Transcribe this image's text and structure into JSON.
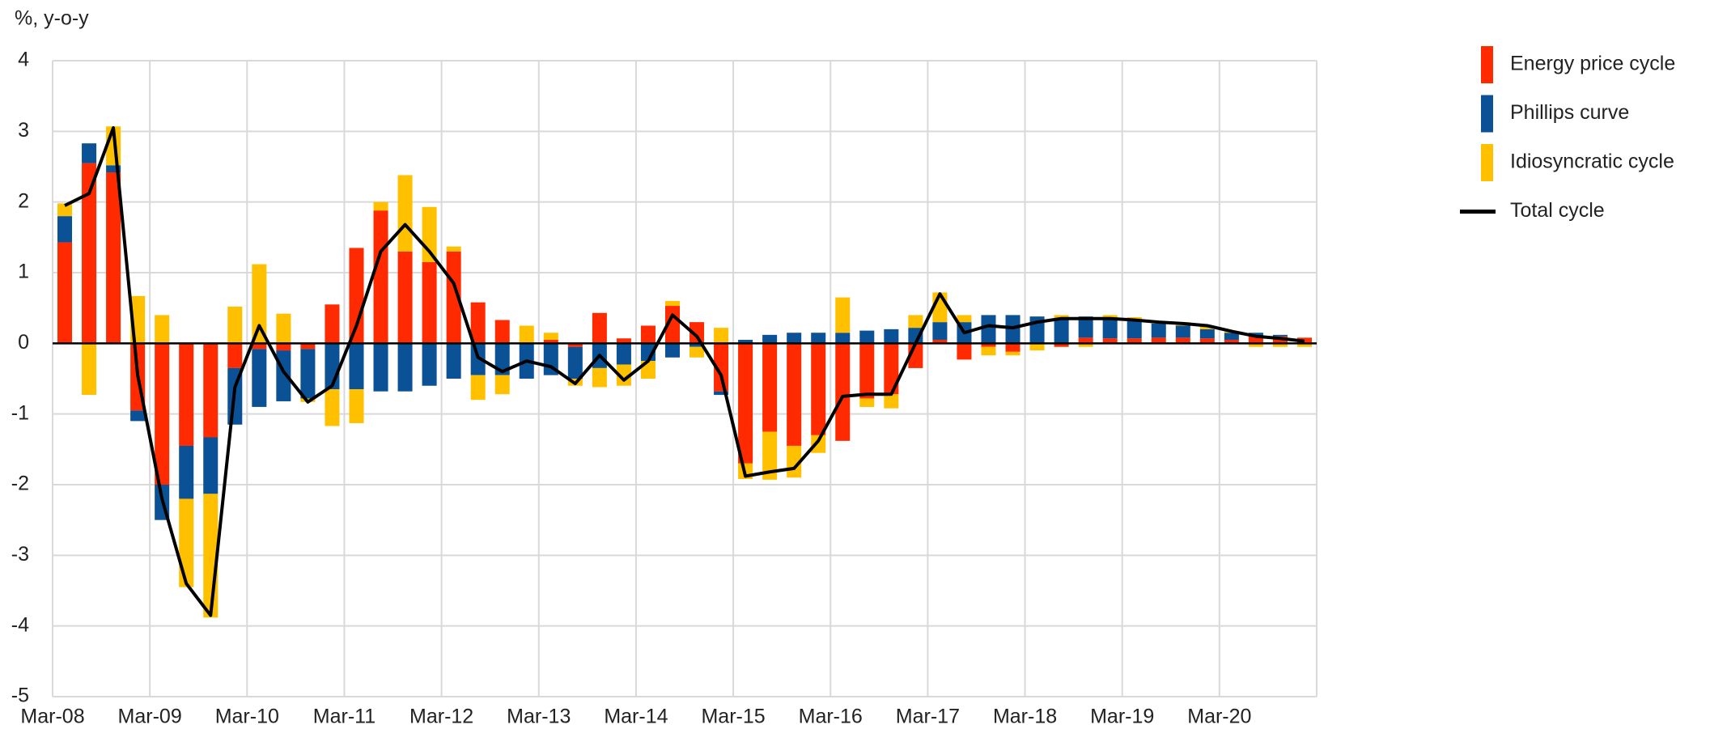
{
  "chart_data": {
    "type": "bar",
    "stacked": true,
    "y_axis_label": "%, y-o-y",
    "categories": [
      "Mar-08",
      null,
      null,
      null,
      "Mar-09",
      null,
      null,
      null,
      "Mar-10",
      null,
      null,
      null,
      "Mar-11",
      null,
      null,
      null,
      "Mar-12",
      null,
      null,
      null,
      "Mar-13",
      null,
      null,
      null,
      "Mar-14",
      null,
      null,
      null,
      "Mar-15",
      null,
      null,
      null,
      "Mar-16",
      null,
      null,
      null,
      "Mar-17",
      null,
      null,
      null,
      "Mar-18",
      null,
      null,
      null,
      "Mar-19",
      null,
      null,
      null,
      "Mar-20",
      null,
      null,
      null
    ],
    "series": [
      {
        "name": "Energy price cycle",
        "type": "bar",
        "color": "#ff2a00",
        "values": [
          1.43,
          2.55,
          2.42,
          -0.95,
          -2.0,
          -1.45,
          -1.33,
          -0.35,
          -0.08,
          -0.1,
          -0.08,
          0.55,
          1.35,
          1.88,
          1.3,
          1.15,
          1.3,
          0.58,
          0.33,
          0,
          0.05,
          -0.05,
          0.43,
          0.07,
          0.25,
          0.53,
          0.3,
          -0.68,
          -1.7,
          -1.25,
          -1.45,
          -1.3,
          -1.38,
          -0.78,
          -0.72,
          -0.35,
          0.05,
          -0.23,
          -0.05,
          -0.12,
          0,
          -0.05,
          0.08,
          0.07,
          0.07,
          0.08,
          0.08,
          0.07,
          0.05,
          0.1,
          0.1,
          0.08
        ]
      },
      {
        "name": "Phillips curve",
        "type": "bar",
        "color": "#0a5196",
        "values": [
          0.37,
          0.28,
          0.1,
          -0.15,
          -0.5,
          -0.75,
          -0.8,
          -0.8,
          -0.82,
          -0.72,
          -0.7,
          -0.65,
          -0.65,
          -0.68,
          -0.68,
          -0.6,
          -0.5,
          -0.45,
          -0.45,
          -0.5,
          -0.45,
          -0.45,
          -0.35,
          -0.3,
          -0.25,
          -0.2,
          -0.05,
          -0.05,
          0.05,
          0.12,
          0.15,
          0.15,
          0.15,
          0.18,
          0.2,
          0.22,
          0.25,
          0.3,
          0.4,
          0.4,
          0.38,
          0.35,
          0.3,
          0.28,
          0.25,
          0.2,
          0.17,
          0.13,
          0.1,
          0.05,
          0.02,
          0
        ]
      },
      {
        "name": "Idiosyncratic cycle",
        "type": "bar",
        "color": "#ffc000",
        "values": [
          0.18,
          -0.73,
          0.55,
          0.67,
          0.4,
          -1.25,
          -1.75,
          0.52,
          1.12,
          0.42,
          -0.05,
          -0.52,
          -0.48,
          0.12,
          1.08,
          0.78,
          0.07,
          -0.35,
          -0.27,
          0.25,
          0.1,
          -0.1,
          -0.27,
          -0.3,
          -0.25,
          0.07,
          -0.15,
          0.22,
          -0.22,
          -0.68,
          -0.45,
          -0.25,
          0.5,
          -0.12,
          -0.2,
          0.18,
          0.42,
          0.1,
          -0.12,
          -0.05,
          -0.1,
          0.05,
          -0.05,
          0.05,
          0.05,
          0.03,
          0.05,
          0.05,
          0.02,
          -0.05,
          -0.05,
          -0.05
        ]
      },
      {
        "name": "Total cycle",
        "type": "line",
        "color": "#000000",
        "values": [
          1.95,
          2.12,
          3.05,
          -0.45,
          -2.2,
          -3.4,
          -3.85,
          -0.62,
          0.25,
          -0.4,
          -0.83,
          -0.6,
          0.25,
          1.3,
          1.68,
          1.3,
          0.85,
          -0.2,
          -0.4,
          -0.25,
          -0.33,
          -0.57,
          -0.17,
          -0.52,
          -0.25,
          0.4,
          0.1,
          -0.45,
          -1.88,
          -1.82,
          -1.77,
          -1.38,
          -0.75,
          -0.72,
          -0.72,
          0.0,
          0.7,
          0.15,
          0.25,
          0.22,
          0.3,
          0.35,
          0.35,
          0.35,
          0.33,
          0.3,
          0.28,
          0.25,
          0.17,
          0.1,
          0.07,
          0.03
        ]
      }
    ],
    "ylim": [
      -5,
      4
    ],
    "yticks": [
      -5,
      -4,
      -3,
      -2,
      -1,
      0,
      1,
      2,
      3,
      4
    ],
    "grid": true,
    "legend": "right"
  }
}
